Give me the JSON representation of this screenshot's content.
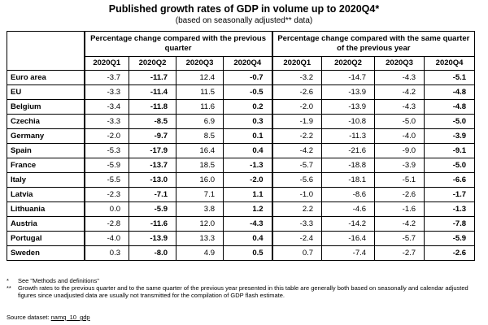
{
  "title": "Published growth rates of GDP in volume up to 2020Q4*",
  "subtitle": "(based on seasonally adjusted** data)",
  "group_headers": {
    "qoq": "Percentage change compared with the previous quarter",
    "yoy": "Percentage change compared with the same quarter of the previous year"
  },
  "quarters": [
    "2020Q1",
    "2020Q2",
    "2020Q3",
    "2020Q4",
    "2020Q1",
    "2020Q2",
    "2020Q3",
    "2020Q4"
  ],
  "rows": [
    {
      "country": "Euro area",
      "values": [
        "-3.7",
        "-11.7",
        "12.4",
        "-0.7",
        "-3.2",
        "-14.7",
        "-4.3",
        "-5.1"
      ]
    },
    {
      "country": "EU",
      "values": [
        "-3.3",
        "-11.4",
        "11.5",
        "-0.5",
        "-2.6",
        "-13.9",
        "-4.2",
        "-4.8"
      ]
    },
    {
      "country": "Belgium",
      "values": [
        "-3.4",
        "-11.8",
        "11.6",
        "0.2",
        "-2.0",
        "-13.9",
        "-4.3",
        "-4.8"
      ]
    },
    {
      "country": "Czechia",
      "values": [
        "-3.3",
        "-8.5",
        "6.9",
        "0.3",
        "-1.9",
        "-10.8",
        "-5.0",
        "-5.0"
      ]
    },
    {
      "country": "Germany",
      "values": [
        "-2.0",
        "-9.7",
        "8.5",
        "0.1",
        "-2.2",
        "-11.3",
        "-4.0",
        "-3.9"
      ]
    },
    {
      "country": "Spain",
      "values": [
        "-5.3",
        "-17.9",
        "16.4",
        "0.4",
        "-4.2",
        "-21.6",
        "-9.0",
        "-9.1"
      ]
    },
    {
      "country": "France",
      "values": [
        "-5.9",
        "-13.7",
        "18.5",
        "-1.3",
        "-5.7",
        "-18.8",
        "-3.9",
        "-5.0"
      ]
    },
    {
      "country": "Italy",
      "values": [
        "-5.5",
        "-13.0",
        "16.0",
        "-2.0",
        "-5.6",
        "-18.1",
        "-5.1",
        "-6.6"
      ]
    },
    {
      "country": "Latvia",
      "values": [
        "-2.3",
        "-7.1",
        "7.1",
        "1.1",
        "-1.0",
        "-8.6",
        "-2.6",
        "-1.7"
      ]
    },
    {
      "country": "Lithuania",
      "values": [
        "0.0",
        "-5.9",
        "3.8",
        "1.2",
        "2.2",
        "-4.6",
        "-1.6",
        "-1.3"
      ]
    },
    {
      "country": "Austria",
      "values": [
        "-2.8",
        "-11.6",
        "12.0",
        "-4.3",
        "-3.3",
        "-14.2",
        "-4.2",
        "-7.8"
      ]
    },
    {
      "country": "Portugal",
      "values": [
        "-4.0",
        "-13.9",
        "13.3",
        "0.4",
        "-2.4",
        "-16.4",
        "-5.7",
        "-5.9"
      ]
    },
    {
      "country": "Sweden",
      "values": [
        "0.3",
        "-8.0",
        "4.9",
        "0.5",
        "0.7",
        "-7.4",
        "-2.7",
        "-2.6"
      ]
    }
  ],
  "bold_value_indexes": [
    1,
    3,
    7
  ],
  "notes": [
    {
      "mark": "*",
      "text": "See \"Methods and definitions\""
    },
    {
      "mark": "**",
      "text": "Growth rates to the previous quarter and to the same quarter of the previous year presented in this table are generally both based on seasonally and calendar adjusted figures since unadjusted data are usually not transmitted for the compilation of GDP flash estimate."
    }
  ],
  "source": {
    "label": "Source dataset:",
    "link": "namq_10_gdp"
  }
}
